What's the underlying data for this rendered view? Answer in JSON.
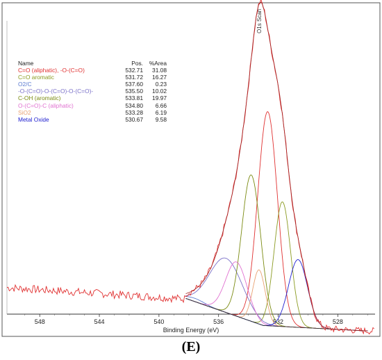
{
  "chart_data": {
    "type": "line",
    "title": "",
    "xlabel": "Binding Energy (eV)",
    "ylabel": "",
    "xlim": [
      550,
      525
    ],
    "x_reversed": true,
    "xticks": [
      548,
      544,
      540,
      536,
      532,
      528
    ],
    "grid": false,
    "scan_label": "O1s Scan",
    "caption": "(E)",
    "legend_header": {
      "name": "Name",
      "pos": "Pos.",
      "area": "%Area"
    },
    "legend_placement": "top-left",
    "components": [
      {
        "name": "C=O (aliphatic), -O-(C=O)",
        "pos": "532.71",
        "area": "31.08",
        "color": "#e03030",
        "center": 532.71,
        "height": 0.79,
        "fwhm": 1.55
      },
      {
        "name": "C=O aromatic",
        "pos": "531.72",
        "area": "16.27",
        "color": "#8a9a20",
        "center": 531.72,
        "height": 0.46,
        "fwhm": 1.3
      },
      {
        "name": "O2/C",
        "pos": "537.60",
        "area": "0.23",
        "color": "#5a7ad0",
        "center": 537.6,
        "height": 0.012,
        "fwhm": 1.5
      },
      {
        "name": "-O-(C=O)-O-(C=O)-O-(C=O)-",
        "pos": "535.50",
        "area": "10.02",
        "color": "#7a70c8",
        "center": 535.5,
        "height": 0.2,
        "fwhm": 2.6
      },
      {
        "name": "C-OH (aromatic)",
        "pos": "533.81",
        "area": "19.97",
        "color": "#7a8a10",
        "center": 533.81,
        "height": 0.54,
        "fwhm": 1.5
      },
      {
        "name": "O-(C=O)-C (aliphatic)",
        "pos": "534.80",
        "area": "6.66",
        "color": "#e070d0",
        "center": 534.8,
        "height": 0.2,
        "fwhm": 1.7
      },
      {
        "name": "SiO2",
        "pos": "533.28",
        "area": "6.19",
        "color": "#e8a070",
        "center": 533.28,
        "height": 0.2,
        "fwhm": 1.0
      },
      {
        "name": "Metal Oxide",
        "pos": "530.67",
        "area": "9.58",
        "color": "#2020d0",
        "center": 530.67,
        "height": 0.25,
        "fwhm": 1.5
      }
    ],
    "baseline": {
      "x": [
        538.2,
        533,
        526
      ],
      "y": [
        0.04,
        -0.06,
        -0.08
      ]
    },
    "flat_level": 0.08,
    "raw_color": "#e03030",
    "envelope_color": "#a02020",
    "baseline_color": "#333333"
  }
}
